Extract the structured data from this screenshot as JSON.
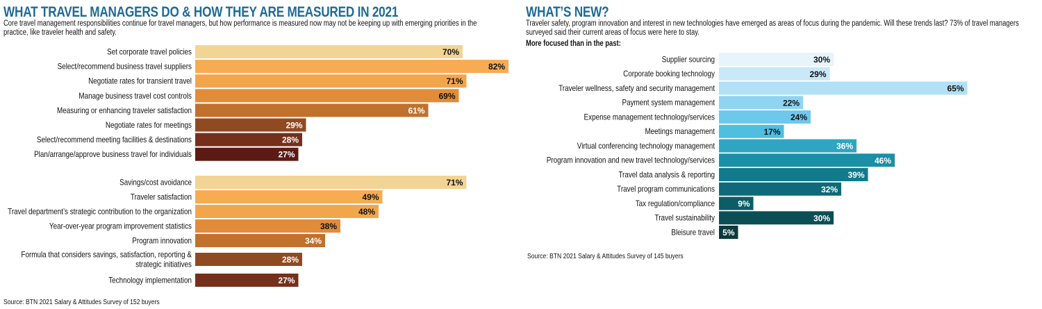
{
  "left": {
    "title": "WHAT TRAVEL MANAGERS DO & HOW THEY ARE MEASURED IN 2021",
    "intro": "Core travel management responsibilities continue for travel managers, but how performance is measured now may not be keeping up with emerging priorities in the practice, like traveler health and safety.",
    "source": "Source: BTN 2021 Salary & Attitudes Survey of 152 buyers"
  },
  "right": {
    "title": "WHAT’S NEW?",
    "intro": "Traveler safety, program innovation and interest in new technologies have emerged as areas of focus during the pandemic. Will these trends last? 73% of travel managers surveyed said their current areas of focus were here to stay.",
    "subhead": "More focused than in the past:",
    "source": "Source: BTN 2021 Salary & Attitudes Survey of 145 buyers"
  },
  "chart_data": [
    {
      "type": "bar",
      "orientation": "horizontal",
      "categories": [
        "Set corporate travel policies",
        "Select/recommend business travel suppliers",
        "Negotiate rates for transient travel",
        "Manage business travel cost controls",
        "Measuring or enhancing traveler satisfaction",
        "Negotiate rates for meetings",
        "Select/recommend meeting facilities & destinations",
        "Plan/arrange/approve business travel for individuals"
      ],
      "values": [
        70,
        82,
        71,
        69,
        61,
        29,
        28,
        27
      ],
      "labels": [
        "70%",
        "82%",
        "71%",
        "69%",
        "61%",
        "29%",
        "28%",
        "27%"
      ],
      "colors": [
        "#f2d494",
        "#f7ab52",
        "#f2a64b",
        "#e28c39",
        "#c0712c",
        "#8f4a22",
        "#74301b",
        "#5c1a14"
      ],
      "label_colors": [
        "#111111",
        "#111111",
        "#111111",
        "#111111",
        "#ffffff",
        "#ffffff",
        "#ffffff",
        "#ffffff"
      ]
    },
    {
      "type": "bar",
      "orientation": "horizontal",
      "categories": [
        "Savings/cost avoidance",
        "Traveler satisfaction",
        "Travel department’s strategic contribution to the organization",
        "Year-over-year program improvement statistics",
        "Program innovation",
        "Formula that considers savings, satisfaction, reporting & strategic initiatives",
        "Technology implementation"
      ],
      "values": [
        71,
        49,
        48,
        38,
        34,
        28,
        27
      ],
      "labels": [
        "71%",
        "49%",
        "48%",
        "38%",
        "34%",
        "28%",
        "27%"
      ],
      "colors": [
        "#f2d494",
        "#f7ab52",
        "#f2a64b",
        "#e28c39",
        "#c0712c",
        "#8f4a22",
        "#74301b"
      ],
      "label_colors": [
        "#111111",
        "#111111",
        "#111111",
        "#111111",
        "#ffffff",
        "#ffffff",
        "#ffffff"
      ]
    },
    {
      "type": "bar",
      "orientation": "horizontal",
      "categories": [
        "Supplier sourcing",
        "Corporate booking technology",
        "Traveler wellness, safety and security management",
        "Payment system management",
        "Expense management technology/services",
        "Meetings management",
        "Virtual conferencing technology management",
        "Program innovation and new travel technology/services",
        "Travel data analysis & reporting",
        "Travel program communications",
        "Tax regulation/compliance",
        "Travel sustainability",
        "Bleisure travel"
      ],
      "values": [
        30,
        29,
        65,
        22,
        24,
        17,
        36,
        46,
        39,
        32,
        9,
        30,
        5
      ],
      "labels": [
        "30%",
        "29%",
        "65%",
        "22%",
        "24%",
        "17%",
        "36%",
        "46%",
        "39%",
        "32%",
        "9%",
        "30%",
        "5%"
      ],
      "colors": [
        "#e6f4fc",
        "#c9e8f8",
        "#b2e0f6",
        "#8fd4f2",
        "#6fc8ec",
        "#4ebfe0",
        "#2ea6c3",
        "#1a8fa6",
        "#117a8c",
        "#0e6a78",
        "#0d5c66",
        "#0c4e56",
        "#0a3a3e"
      ],
      "label_colors": [
        "#111111",
        "#111111",
        "#111111",
        "#111111",
        "#111111",
        "#111111",
        "#ffffff",
        "#ffffff",
        "#ffffff",
        "#ffffff",
        "#ffffff",
        "#ffffff",
        "#ffffff"
      ]
    }
  ]
}
